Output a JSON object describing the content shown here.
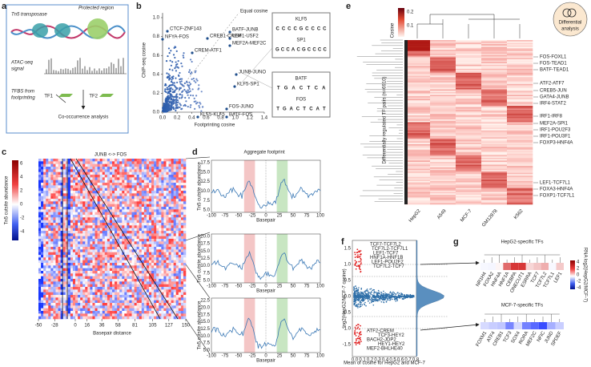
{
  "panel_a": {
    "letter": "a",
    "tn5": "Tn5 transposase",
    "protected": "Protected region",
    "atac": [
      "ATAC-seq",
      "signal"
    ],
    "tfbs": [
      "TFBS from",
      "footprinting"
    ],
    "tf1": "TF1",
    "tf2": "TF2",
    "cooccurrence": "Co-occurrence analysis"
  },
  "panel_b": {
    "letter": "b",
    "equal": "Equal cosine",
    "ylabel": "ChIP-seq cosine",
    "xlabel": "Footprinting cosine",
    "xticks": [
      "0.0",
      "0.2",
      "0.4",
      "0.6",
      "0.8",
      "1.0",
      "1.2",
      "1.4"
    ],
    "yticks": [
      "0.0",
      "0.2",
      "0.4",
      "0.6",
      "0.8",
      "1.0"
    ],
    "points": [
      "CTCF-ZNF143",
      "NFYA-FOS",
      "CREB1-CREM",
      "BATF-JUNB",
      "USF1-USF2",
      "MEF2A-MEF2C",
      "CREM-ATF1",
      "JUNB-JUNO",
      "KLF5-SP1",
      "FOS-JUNO",
      "BATF-FOS",
      "KLF5-KLF5"
    ],
    "motifs": [
      {
        "name": "KLF5",
        "logo": [
          "C",
          "C",
          "C",
          "C",
          "G",
          "C",
          "C",
          "C",
          "C"
        ]
      },
      {
        "name": "SP1",
        "logo": [
          "G",
          "C",
          "C",
          "A",
          "C",
          "G",
          "C",
          "C",
          "C",
          "C"
        ]
      },
      {
        "name": "BATF",
        "logo": [
          "T",
          "G",
          "A",
          "C",
          "T",
          "C",
          "A"
        ]
      },
      {
        "name": "FOS",
        "logo": [
          "T",
          "G",
          "A",
          "C",
          "T",
          "C",
          "A",
          "T"
        ]
      }
    ]
  },
  "panel_c": {
    "letter": "c",
    "title": "JUNB <-> FOS",
    "cbar_label": "Tn5 cutsite abundance",
    "cbar_ticks": [
      "6",
      "4",
      "2",
      "0",
      "-2",
      "-4"
    ],
    "xlabel": "Basepair distance",
    "xticks": [
      "-50",
      "-28",
      "0",
      "16",
      "36",
      "58",
      "81",
      "105",
      "127",
      "150"
    ]
  },
  "panel_d": {
    "letter": "d",
    "title": "Aggregate footprint",
    "ylabel": "Tn5 cutsite abundance",
    "xlabel": "Basepair",
    "xticks": [
      "-100",
      "-75",
      "-50",
      "-25",
      "0",
      "25",
      "50",
      "75",
      "100"
    ],
    "plots": [
      {
        "yticks": [
          "17.5",
          "15.0",
          "12.5",
          "10.0",
          "7.5",
          "5.0"
        ]
      },
      {
        "yticks": [
          "20.0",
          "17.5",
          "15.0",
          "12.5",
          "10.0",
          "7.5",
          "5.0"
        ]
      },
      {
        "yticks": [
          "22.5",
          "20.0",
          "17.5",
          "15.0",
          "12.5",
          "10.0",
          "7.5",
          "5.0"
        ]
      }
    ]
  },
  "panel_e": {
    "letter": "e",
    "badge": [
      "Differential",
      "analysis"
    ],
    "cbar_label": "Cosine",
    "cbar_ticks": [
      "0.2",
      "0.1"
    ],
    "ylabel": "Differentially regulated TF pairs (n=6910)",
    "columns": [
      "HepG2",
      "A549",
      "MCF-7",
      "GM12878",
      "K562"
    ],
    "rows": [
      "FOS-FOXL1",
      "FOS-TEAD1",
      "BATF-TEAD1",
      "ATF2-ATF7",
      "CREB5-JUN",
      "GATA4-JUNB",
      "IRF4-STAT2",
      "IRF1-IRF8",
      "MEF2A-SPI1",
      "IRF1-POU2F3",
      "IRF1-POU3F1",
      "FOXP3-HNF4A",
      "LEF1-TCF7L1",
      "FOXA3-HNF4A",
      "FOXP1-TCF7L1"
    ]
  },
  "panel_f": {
    "letter": "f",
    "ylabel": "log2(HepG2/MCF-7 cosine)",
    "xlabel": "Mean of cosine for HepG2 and MCF-7",
    "yticks": [
      "1.5",
      "1.0",
      "0.5",
      "0.0",
      "-0.5",
      "-1.0",
      "-1.5"
    ],
    "xticks": [
      "0.0",
      "0.1",
      "0.2",
      "0.3",
      "0.4",
      "0.5",
      "0.6",
      "0.7",
      "0.8"
    ],
    "top_labels": [
      "TCF7-TCF7L2",
      "TCF7L2-TCF7L1",
      "LEF1-TCF7",
      "HNF1A-HNF1B",
      "LEF1-POU2F2",
      "TCF7L2-TCF7"
    ],
    "bottom_labels": [
      "ATF2-CREM",
      "TCF3-HEY2",
      "BACH2-JDP2",
      "HEY1-HEY2",
      "MEF2-BHLHE40"
    ]
  },
  "panel_g": {
    "letter": "g",
    "top_title": "HepG2-specific TFs",
    "bottom_title": "MCF-7-specific TFs",
    "cbar_label": "RNA log2(HepG2/MCF-7)",
    "cbar_ticks": [
      "4",
      "2",
      "0",
      "-2",
      "-4"
    ],
    "top_genes": [
      "NR1H4",
      "FOXA2",
      "HNF4A",
      "HNF1A",
      "CEBPA",
      "ONECUT1",
      "ESRRA",
      "TCF7",
      "TCF7L2",
      "TCF7L1",
      "LEF1"
    ],
    "bottom_genes": [
      "FOXM1",
      "ATF4",
      "CREB1",
      "TCF3",
      "SOX4",
      "RORA",
      "MEF2C",
      "NFIC",
      "JUND",
      "SPDEF"
    ]
  }
}
